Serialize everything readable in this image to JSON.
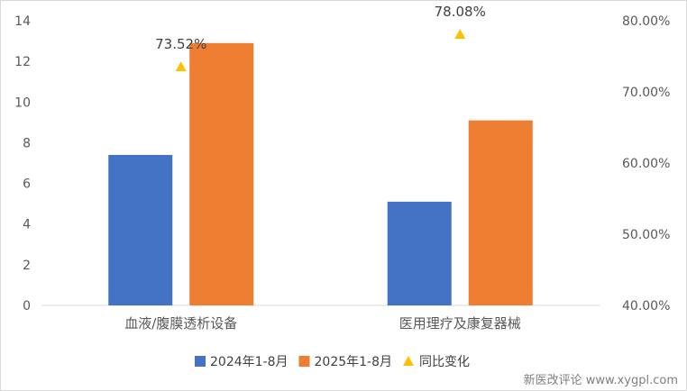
{
  "chart_data": {
    "type": "bar",
    "categories": [
      "血液/腹膜透析设备",
      "医用理疗及康复器械"
    ],
    "series": [
      {
        "name": "2024年1-8月",
        "values": [
          7.4,
          5.1
        ],
        "color": "#4472C4",
        "axis": "left"
      },
      {
        "name": "2025年1-8月",
        "values": [
          12.9,
          9.1
        ],
        "color": "#ED7D31",
        "axis": "left"
      }
    ],
    "markers": {
      "name": "同比变化",
      "values": [
        73.52,
        78.08
      ],
      "labels": [
        "73.52%",
        "78.08%"
      ],
      "color": "#FFC000",
      "axis": "right"
    },
    "y_left": {
      "min": 0,
      "max": 14,
      "ticks": [
        "0",
        "2",
        "4",
        "6",
        "8",
        "10",
        "12",
        "14"
      ]
    },
    "y_right": {
      "min": 40,
      "max": 80,
      "ticks": [
        "40.00%",
        "50.00%",
        "60.00%",
        "70.00%",
        "80.00%"
      ]
    },
    "grid": false,
    "legend_position": "bottom"
  },
  "watermark": "新医改评论 www.xygpl.com"
}
